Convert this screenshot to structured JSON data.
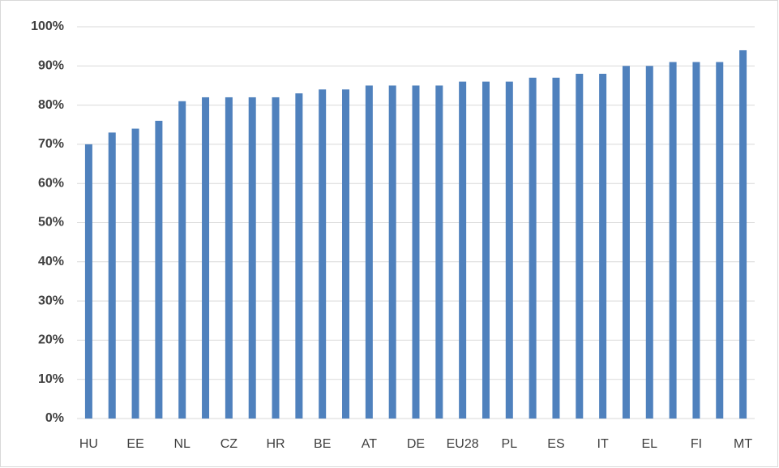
{
  "chart_data": {
    "type": "bar",
    "categories": [
      "HU",
      null,
      "EE",
      null,
      "NL",
      null,
      "CZ",
      null,
      "HR",
      null,
      "BE",
      null,
      "AT",
      null,
      "DE",
      null,
      "EU28",
      null,
      "PL",
      null,
      "ES",
      null,
      "IT",
      null,
      "EL",
      null,
      "FI",
      null,
      "MT"
    ],
    "values": [
      70,
      73,
      74,
      76,
      81,
      82,
      82,
      82,
      82,
      83,
      84,
      84,
      85,
      85,
      85,
      85,
      86,
      86,
      86,
      87,
      87,
      88,
      88,
      90,
      90,
      91,
      91,
      91,
      94
    ],
    "color": "#4f81bd",
    "ylim": [
      0,
      100
    ],
    "yticks": [
      {
        "value": 0,
        "label": "0%"
      },
      {
        "value": 10,
        "label": "10%"
      },
      {
        "value": 20,
        "label": "20%"
      },
      {
        "value": 30,
        "label": "30%"
      },
      {
        "value": 40,
        "label": "40%"
      },
      {
        "value": 50,
        "label": "50%"
      },
      {
        "value": 60,
        "label": "60%"
      },
      {
        "value": 70,
        "label": "70%"
      },
      {
        "value": 80,
        "label": "80%"
      },
      {
        "value": 90,
        "label": "90%"
      },
      {
        "value": 100,
        "label": "100%"
      }
    ],
    "grid": true
  }
}
